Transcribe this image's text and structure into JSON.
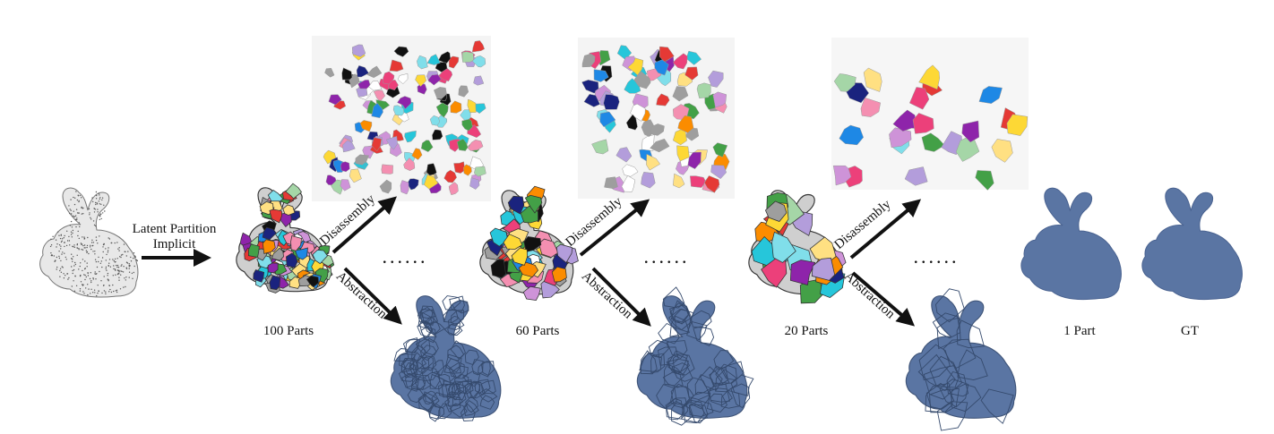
{
  "method": {
    "line1": "Latent Partition",
    "line2": "Implicit"
  },
  "branches": {
    "disassembly": "Disassembly",
    "abstraction": "Abstraction"
  },
  "stages": [
    {
      "label": "100 Parts"
    },
    {
      "label": "60 Parts"
    },
    {
      "label": "20 Parts"
    }
  ],
  "final": {
    "one_part": "1 Part",
    "gt": "GT"
  },
  "ellipsis": "......",
  "colors": {
    "abstraction_blue": "#5a75a3",
    "point_cloud_gray": "#8a8a8a",
    "arrow": "#111111"
  }
}
